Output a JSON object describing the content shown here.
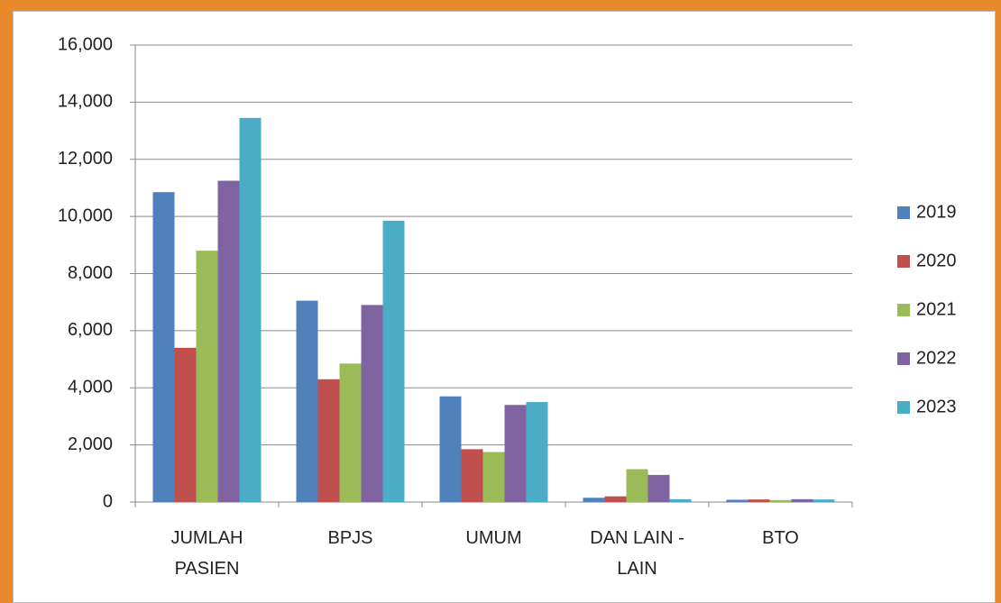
{
  "chart_data": {
    "type": "bar",
    "categories": [
      "JUMLAH PASIEN",
      "BPJS",
      "UMUM",
      "DAN LAIN - LAIN",
      "BTO"
    ],
    "series": [
      {
        "name": "2019",
        "color": "#4f81bd",
        "values": [
          10850,
          7050,
          3700,
          150,
          80
        ]
      },
      {
        "name": "2020",
        "color": "#c0504d",
        "values": [
          5400,
          4300,
          1850,
          200,
          90
        ]
      },
      {
        "name": "2021",
        "color": "#9bbb59",
        "values": [
          8800,
          4850,
          1750,
          1150,
          70
        ]
      },
      {
        "name": "2022",
        "color": "#8064a2",
        "values": [
          11250,
          6900,
          3400,
          950,
          100
        ]
      },
      {
        "name": "2023",
        "color": "#4bacc6",
        "values": [
          13450,
          9850,
          3500,
          100,
          90
        ]
      }
    ],
    "ylim": [
      0,
      16000
    ],
    "yticks": [
      0,
      {
        "value": 2000,
        "label": "2,000"
      },
      {
        "value": 4000,
        "label": "4,000"
      },
      {
        "value": 6000,
        "label": "6,000"
      },
      {
        "value": 8000,
        "label": "8,000"
      },
      {
        "value": 10000,
        "label": "10,000"
      },
      {
        "value": 12000,
        "label": "12,000"
      },
      {
        "value": 14000,
        "label": "14,000"
      },
      {
        "value": 16000,
        "label": "16,000"
      }
    ],
    "grid": true,
    "legend": "right"
  }
}
